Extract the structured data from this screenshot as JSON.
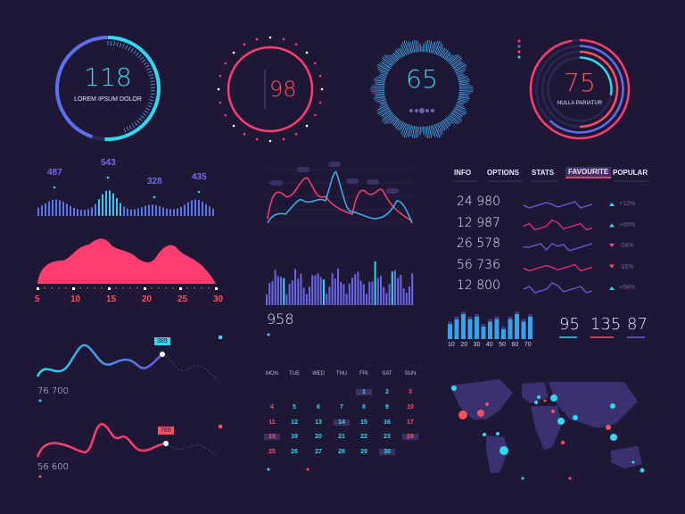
{
  "colors": {
    "background": "#1e1836",
    "cyan": "#2fd8f0",
    "blue": "#5c6ff0",
    "pink": "#ff3d6e",
    "red": "#ff4f5e",
    "violet": "#6a5ae0"
  },
  "gauges": [
    {
      "value": "118",
      "label": "LOREM IPSUM DOLOR",
      "progress": 0.3,
      "color": "#2fd8f0"
    },
    {
      "value": "98",
      "color": "#ff3d6e"
    },
    {
      "value": "65",
      "color": "#2fd8f0"
    },
    {
      "value": "75",
      "label": "NULLA PARIATUR",
      "color": "#ff4f5e",
      "rings": [
        0.75,
        0.62,
        0.5,
        0.28
      ]
    }
  ],
  "wave_bars": {
    "peaks": [
      "487",
      "543",
      "328",
      "435"
    ]
  },
  "area_axis": {
    "ticks": [
      "5",
      "10",
      "15",
      "20",
      "25",
      "30"
    ]
  },
  "center_bars": {
    "value": "958"
  },
  "tabs": [
    {
      "label": "INFO"
    },
    {
      "label": "OPTIONS"
    },
    {
      "label": "STATS"
    },
    {
      "label": "FAVOURITE",
      "active": true
    },
    {
      "label": "POPULAR"
    }
  ],
  "stats": [
    {
      "value": "24 980",
      "trend": "up",
      "pct": "+12%",
      "color": "#6a5ae0"
    },
    {
      "value": "12 987",
      "trend": "up",
      "pct": "+66%",
      "color": "#e8306e"
    },
    {
      "value": "26 578",
      "trend": "down",
      "pct": "-24%",
      "color": "#6a5ae0"
    },
    {
      "value": "56 736",
      "trend": "down",
      "pct": "-15%",
      "color": "#e8306e"
    },
    {
      "value": "12 800",
      "trend": "up",
      "pct": "+58%",
      "color": "#6a5ae0"
    }
  ],
  "mini_bars": {
    "ticks": [
      "10",
      "20",
      "30",
      "40",
      "50",
      "60",
      "70"
    ],
    "values": [
      6,
      8,
      10,
      8,
      9,
      5,
      7,
      8,
      4,
      8,
      10,
      7,
      9
    ]
  },
  "kpis": [
    {
      "value": "95",
      "color": "#2fd8f0"
    },
    {
      "value": "135",
      "color": "#ff4f5e"
    },
    {
      "value": "87",
      "color": "#6a5ae0"
    }
  ],
  "line_charts": [
    {
      "value": "76 700",
      "callout": "389",
      "color": "#2fd8f0"
    },
    {
      "value": "56 600",
      "callout": "789",
      "color": "#ff4f5e"
    }
  ],
  "calendar": {
    "weekdays": [
      "MON",
      "TUE",
      "WED",
      "THU",
      "FRI",
      "SAT",
      "SUN"
    ],
    "first_weekday": 4,
    "days": 30,
    "highlighted": [
      1,
      14,
      18,
      24,
      30
    ],
    "red": [
      3,
      4,
      10,
      11,
      17,
      18,
      24,
      25
    ]
  }
}
